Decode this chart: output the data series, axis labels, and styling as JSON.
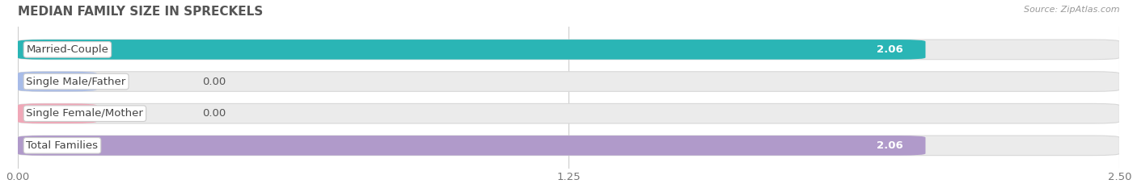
{
  "title": "MEDIAN FAMILY SIZE IN SPRECKELS",
  "source": "Source: ZipAtlas.com",
  "categories": [
    "Married-Couple",
    "Single Male/Father",
    "Single Female/Mother",
    "Total Families"
  ],
  "values": [
    2.06,
    0.0,
    0.0,
    2.06
  ],
  "bar_colors": [
    "#2ab5b5",
    "#a8bce8",
    "#f0a8b8",
    "#b09aca"
  ],
  "xlim_max": 2.5,
  "xticks": [
    0.0,
    1.25,
    2.5
  ],
  "xtick_labels": [
    "0.00",
    "1.25",
    "2.50"
  ],
  "label_fontsize": 9.5,
  "value_fontsize": 9.5,
  "title_fontsize": 11,
  "source_fontsize": 8,
  "background_color": "#ffffff",
  "bar_bg_color": "#ebebeb",
  "bar_height": 0.62,
  "bar_label_color_white": "#ffffff",
  "bar_label_color_dark": "#555555",
  "title_color": "#555555",
  "source_color": "#999999",
  "grid_color": "#cccccc",
  "label_box_color": "#ffffff",
  "label_text_color": "#444444"
}
